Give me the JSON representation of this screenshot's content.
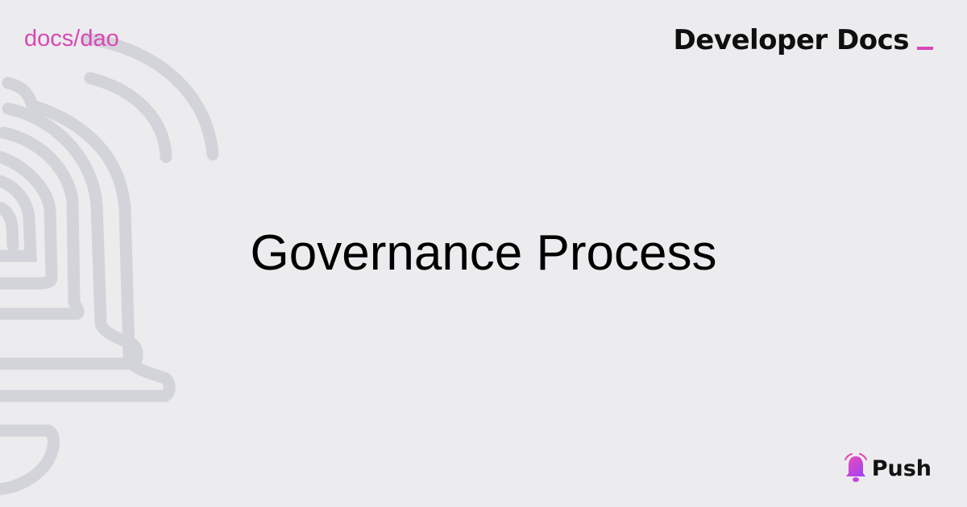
{
  "breadcrumb": {
    "text": "docs/dao"
  },
  "brand": {
    "title": "Developer Docs"
  },
  "main": {
    "title": "Governance Process"
  },
  "logo": {
    "name": "Push"
  },
  "colors": {
    "accent": "#d948b5",
    "background": "#ececee",
    "outline": "#d3d3da"
  },
  "icons": {
    "background": "bell-outline-icon",
    "logo": "push-bell-icon"
  }
}
